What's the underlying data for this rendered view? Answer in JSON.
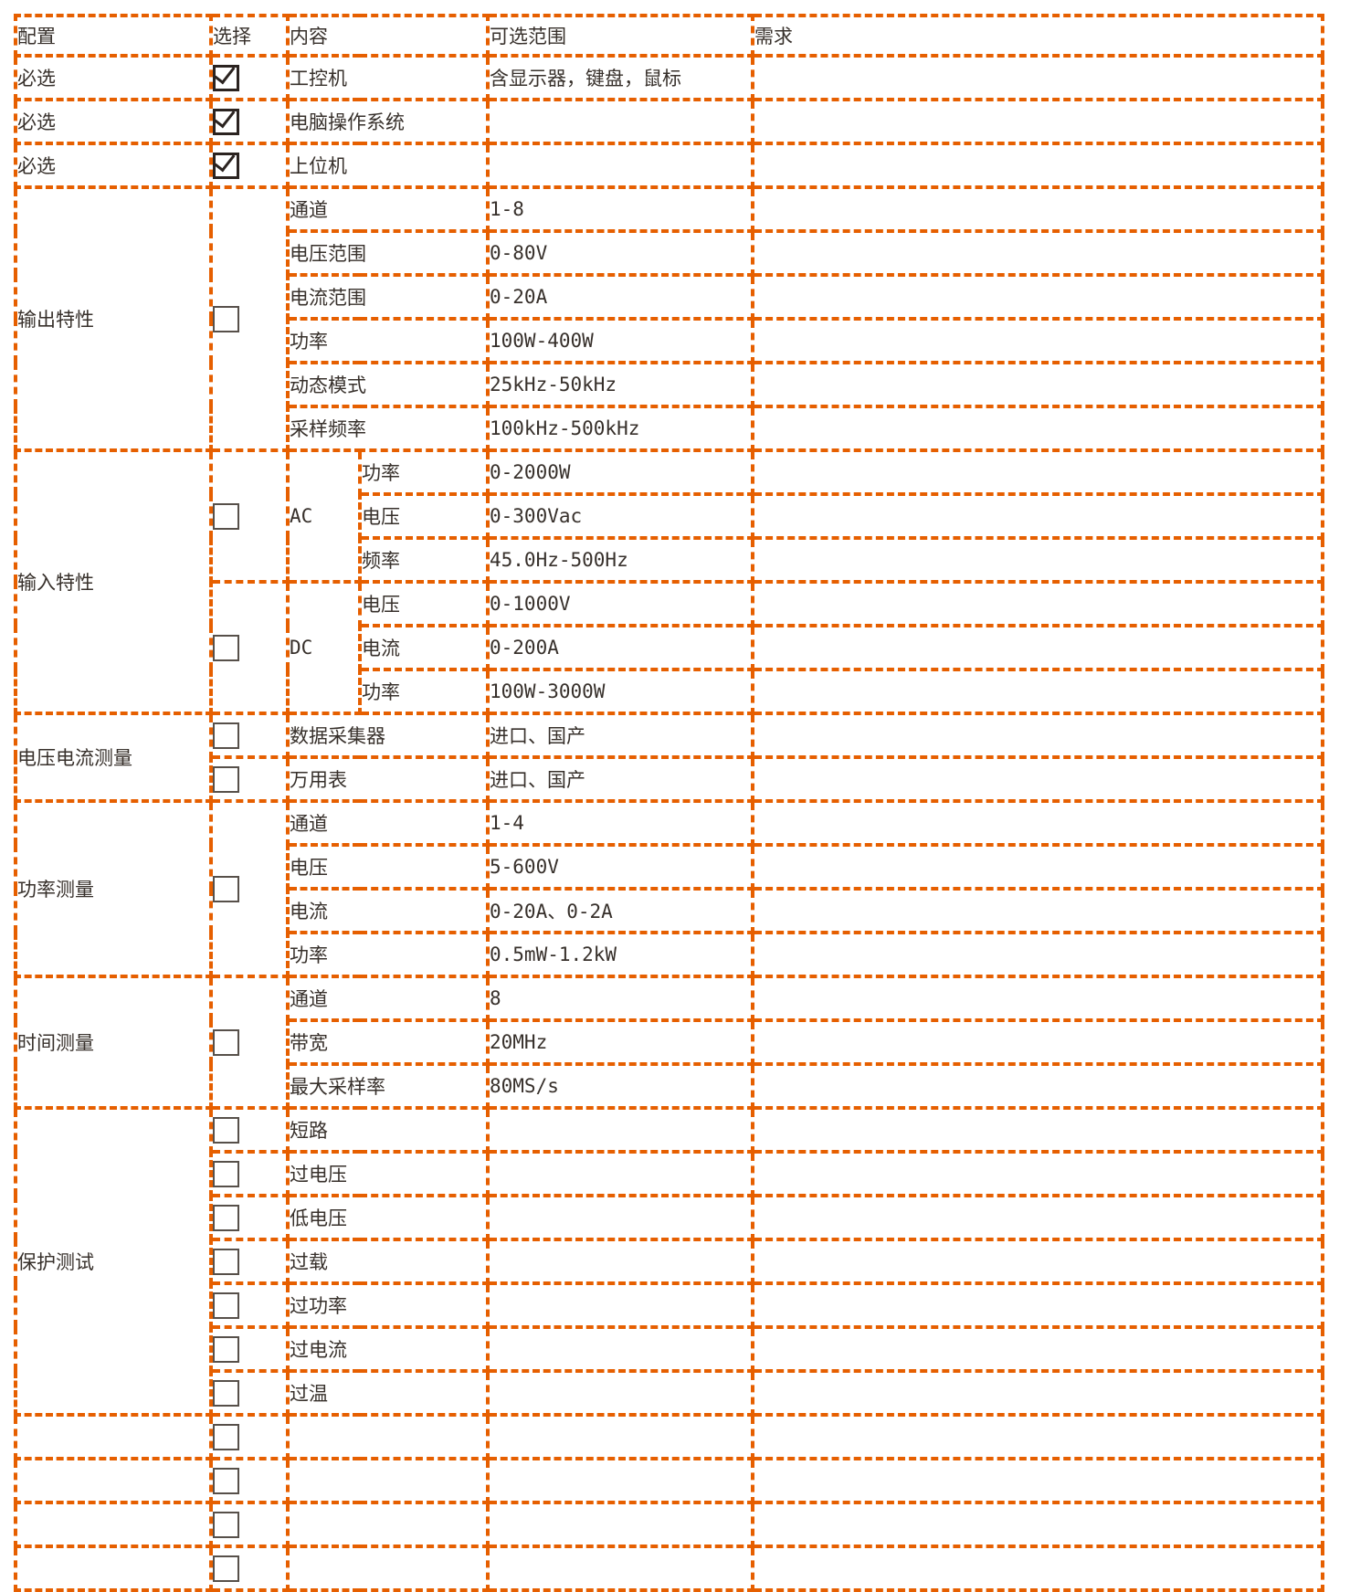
{
  "colors": {
    "accent": "#e65f00",
    "text": "#37302b",
    "checkbox_checked": "#2b2320",
    "checkbox_unchecked": "#57504a"
  },
  "header": {
    "config": "配置",
    "select": "选择",
    "content": "内容",
    "range": "可选范围",
    "demand": "需求"
  },
  "sections": [
    {
      "config": "必选",
      "groups": [
        {
          "checked": true,
          "rows": [
            {
              "content": "工控机",
              "range": "含显示器，键盘，鼠标"
            }
          ]
        }
      ]
    },
    {
      "config": "必选",
      "groups": [
        {
          "checked": true,
          "rows": [
            {
              "content": "电脑操作系统",
              "range": ""
            }
          ]
        }
      ]
    },
    {
      "config": "必选",
      "groups": [
        {
          "checked": true,
          "rows": [
            {
              "content": "上位机",
              "range": ""
            }
          ]
        }
      ]
    },
    {
      "config": "输出特性",
      "groups": [
        {
          "checked": false,
          "rows": [
            {
              "content": "通道",
              "range": "1-8"
            },
            {
              "content": "电压范围",
              "range": "0-80V"
            },
            {
              "content": "电流范围",
              "range": "0-20A"
            },
            {
              "content": "功率",
              "range": "100W-400W"
            },
            {
              "content": "动态模式",
              "range": "25kHz-50kHz"
            },
            {
              "content": "采样频率",
              "range": "100kHz-500kHz"
            }
          ]
        }
      ]
    },
    {
      "config": "输入特性",
      "groups": [
        {
          "checked": false,
          "label": "AC",
          "rows": [
            {
              "content": "功率",
              "range": "0-2000W"
            },
            {
              "content": "电压",
              "range": "0-300Vac"
            },
            {
              "content": "频率",
              "range": "45.0Hz-500Hz"
            }
          ]
        },
        {
          "checked": false,
          "label": "DC",
          "rows": [
            {
              "content": "电压",
              "range": "0-1000V"
            },
            {
              "content": "电流",
              "range": "0-200A"
            },
            {
              "content": "功率",
              "range": "100W-3000W"
            }
          ]
        }
      ]
    },
    {
      "config": "电压电流测量",
      "groups": [
        {
          "checked": false,
          "rows": [
            {
              "content": "数据采集器",
              "range": "进口、国产"
            }
          ]
        },
        {
          "checked": false,
          "rows": [
            {
              "content": "万用表",
              "range": "进口、国产"
            }
          ]
        }
      ]
    },
    {
      "config": "功率测量",
      "groups": [
        {
          "checked": false,
          "rows": [
            {
              "content": "通道",
              "range": "1-4"
            },
            {
              "content": "电压",
              "range": "5-600V"
            },
            {
              "content": "电流",
              "range": "0-20A、0-2A"
            },
            {
              "content": "功率",
              "range": "0.5mW-1.2kW"
            }
          ]
        }
      ]
    },
    {
      "config": "时间测量",
      "groups": [
        {
          "checked": false,
          "rows": [
            {
              "content": "通道",
              "range": "8"
            },
            {
              "content": "带宽",
              "range": "20MHz"
            },
            {
              "content": "最大采样率",
              "range": "80MS/s"
            }
          ]
        }
      ]
    },
    {
      "config": "保护测试",
      "groups": [
        {
          "checked": false,
          "rows": [
            {
              "content": "短路",
              "range": ""
            }
          ]
        },
        {
          "checked": false,
          "rows": [
            {
              "content": "过电压",
              "range": ""
            }
          ]
        },
        {
          "checked": false,
          "rows": [
            {
              "content": "低电压",
              "range": ""
            }
          ]
        },
        {
          "checked": false,
          "rows": [
            {
              "content": "过载",
              "range": ""
            }
          ]
        },
        {
          "checked": false,
          "rows": [
            {
              "content": "过功率",
              "range": ""
            }
          ]
        },
        {
          "checked": false,
          "rows": [
            {
              "content": "过电流",
              "range": ""
            }
          ]
        },
        {
          "checked": false,
          "rows": [
            {
              "content": "过温",
              "range": ""
            }
          ]
        }
      ]
    },
    {
      "config": "",
      "groups": [
        {
          "checked": false,
          "rows": [
            {
              "content": "",
              "range": ""
            }
          ]
        }
      ]
    },
    {
      "config": "",
      "groups": [
        {
          "checked": false,
          "rows": [
            {
              "content": "",
              "range": ""
            }
          ]
        }
      ]
    },
    {
      "config": "",
      "groups": [
        {
          "checked": false,
          "rows": [
            {
              "content": "",
              "range": ""
            }
          ]
        }
      ]
    },
    {
      "config": "",
      "groups": [
        {
          "checked": false,
          "rows": [
            {
              "content": "",
              "range": ""
            }
          ]
        }
      ]
    }
  ]
}
